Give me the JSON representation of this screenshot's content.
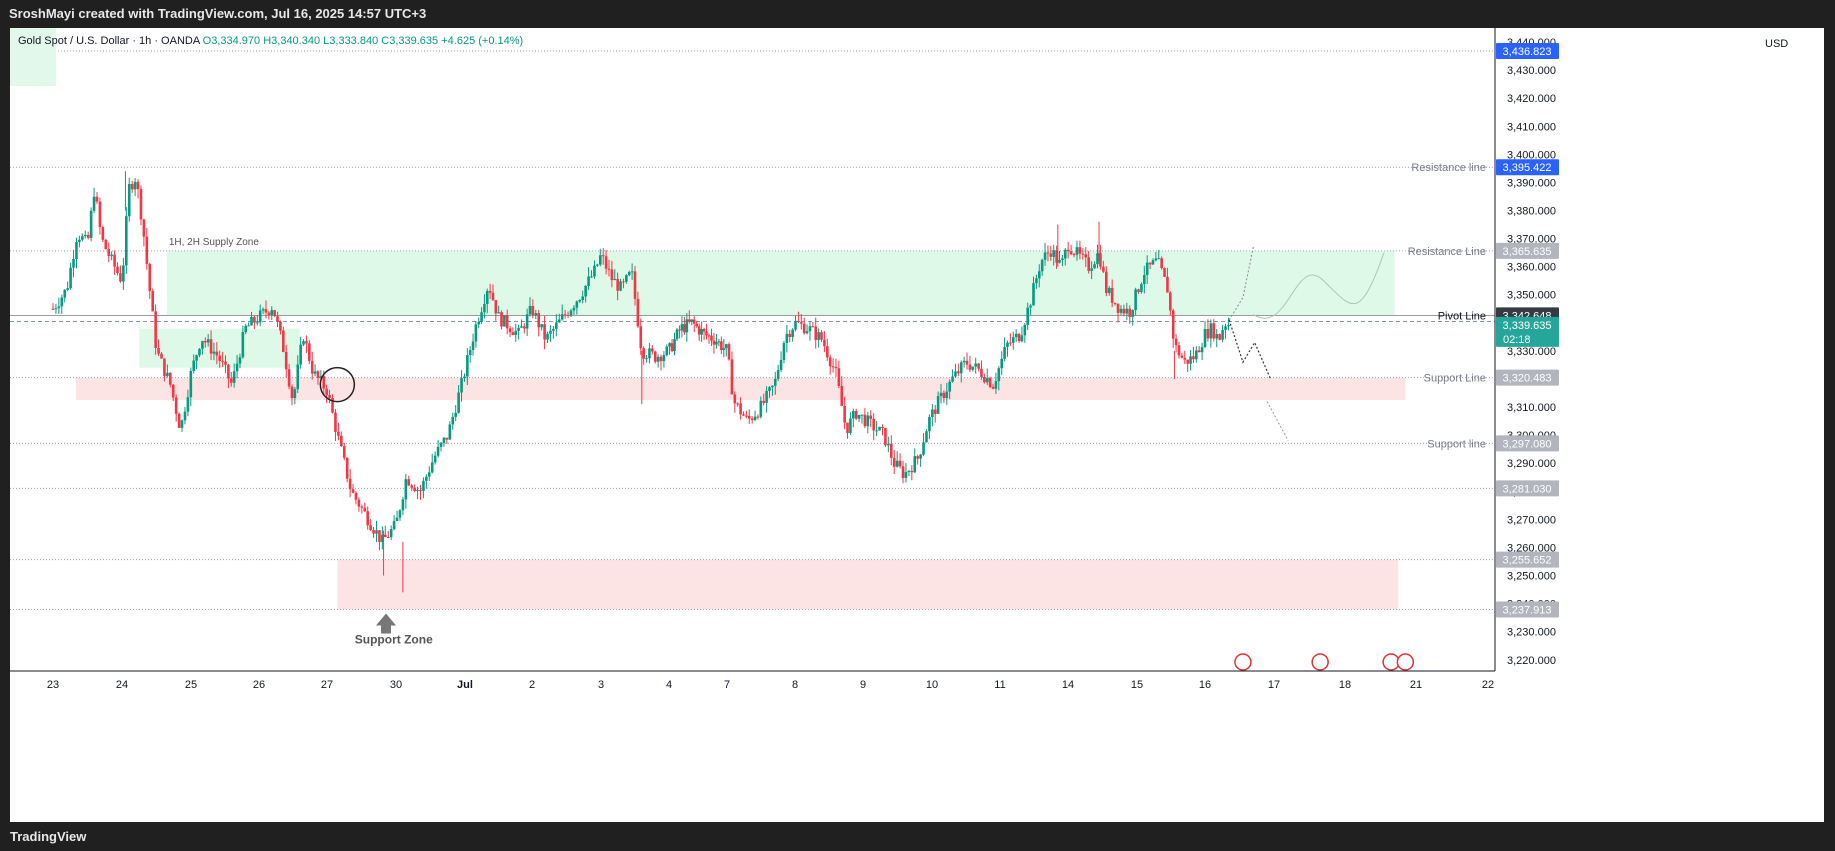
{
  "header": {
    "attribution": "SroshMayi created with TradingView.com, Jul 16, 2025 14:57 UTC+3"
  },
  "legend": {
    "symbol": "Gold Spot / U.S. Dollar · 1h · OANDA",
    "open": "O3,334.970",
    "high": "H3,340.340",
    "low": "L3,333.840",
    "close": "C3,339.635",
    "change": "+4.625 (+0.14%)"
  },
  "currency": "USD",
  "footer": {
    "brand": "TradingView"
  },
  "colors": {
    "up": "#089981",
    "down": "#f23645",
    "supply_zone": "#dff9e9",
    "support_zone": "#fde4e4",
    "blue_label": "#2962ff",
    "gray_label": "#b2b5be",
    "dark_label": "#363a45",
    "teal_label": "#26a69a"
  },
  "chart_data": {
    "type": "candlestick",
    "title": "Gold Spot / U.S. Dollar · 1h · OANDA",
    "ylim": [
      3216,
      3445
    ],
    "y_ticks": [
      3220,
      3230,
      3240,
      3250,
      3260,
      3270,
      3280,
      3290,
      3300,
      3310,
      3320,
      3330,
      3340,
      3350,
      3360,
      3370,
      3380,
      3390,
      3400,
      3410,
      3420,
      3430,
      3440
    ],
    "x_ticks": [
      {
        "label": "23",
        "i": 0
      },
      {
        "label": "24",
        "i": 1
      },
      {
        "label": "25",
        "i": 2
      },
      {
        "label": "26",
        "i": 3
      },
      {
        "label": "27",
        "i": 4
      },
      {
        "label": "30",
        "i": 5
      },
      {
        "label": "Jul",
        "i": 6
      },
      {
        "label": "2",
        "i": 7
      },
      {
        "label": "3",
        "i": 8
      },
      {
        "label": "4",
        "i": 9
      },
      {
        "label": "7",
        "i": 10
      },
      {
        "label": "8",
        "i": 11
      },
      {
        "label": "9",
        "i": 12
      },
      {
        "label": "10",
        "i": 13
      },
      {
        "label": "11",
        "i": 14
      },
      {
        "label": "14",
        "i": 15
      },
      {
        "label": "15",
        "i": 16
      },
      {
        "label": "16",
        "i": 17
      },
      {
        "label": "17",
        "i": 18
      },
      {
        "label": "18",
        "i": 19
      },
      {
        "label": "21",
        "i": 20
      },
      {
        "label": "22",
        "i": 21
      }
    ],
    "close_path": [
      [
        0,
        3345
      ],
      [
        0.2,
        3352
      ],
      [
        0.35,
        3372
      ],
      [
        0.5,
        3368
      ],
      [
        0.6,
        3388
      ],
      [
        0.7,
        3370
      ],
      [
        0.85,
        3362
      ],
      [
        1.0,
        3355
      ],
      [
        1.1,
        3388
      ],
      [
        1.2,
        3392
      ],
      [
        1.3,
        3375
      ],
      [
        1.4,
        3352
      ],
      [
        1.5,
        3330
      ],
      [
        1.7,
        3318
      ],
      [
        1.85,
        3302
      ],
      [
        2.0,
        3322
      ],
      [
        2.15,
        3335
      ],
      [
        2.4,
        3328
      ],
      [
        2.6,
        3318
      ],
      [
        2.8,
        3338
      ],
      [
        3.0,
        3342
      ],
      [
        3.2,
        3346
      ],
      [
        3.35,
        3332
      ],
      [
        3.5,
        3312
      ],
      [
        3.65,
        3336
      ],
      [
        3.8,
        3322
      ],
      [
        4.0,
        3316
      ],
      [
        4.15,
        3300
      ],
      [
        4.35,
        3280
      ],
      [
        4.55,
        3272
      ],
      [
        4.8,
        3262
      ],
      [
        5.0,
        3268
      ],
      [
        5.15,
        3285
      ],
      [
        5.35,
        3280
      ],
      [
        5.55,
        3292
      ],
      [
        5.75,
        3300
      ],
      [
        5.95,
        3318
      ],
      [
        6.15,
        3338
      ],
      [
        6.35,
        3354
      ],
      [
        6.5,
        3342
      ],
      [
        6.8,
        3336
      ],
      [
        7.0,
        3345
      ],
      [
        7.2,
        3334
      ],
      [
        7.45,
        3342
      ],
      [
        7.7,
        3350
      ],
      [
        7.9,
        3358
      ],
      [
        8.0,
        3364
      ],
      [
        8.15,
        3356
      ],
      [
        8.3,
        3352
      ],
      [
        8.45,
        3358
      ],
      [
        8.6,
        3330
      ],
      [
        8.8,
        3328
      ],
      [
        9.0,
        3330
      ],
      [
        9.2,
        3338
      ],
      [
        9.4,
        3340
      ],
      [
        9.6,
        3336
      ],
      [
        9.8,
        3334
      ],
      [
        10.0,
        3330
      ],
      [
        10.1,
        3312
      ],
      [
        10.3,
        3305
      ],
      [
        10.5,
        3310
      ],
      [
        10.7,
        3318
      ],
      [
        10.85,
        3335
      ],
      [
        11.0,
        3340
      ],
      [
        11.2,
        3338
      ],
      [
        11.4,
        3334
      ],
      [
        11.6,
        3322
      ],
      [
        11.75,
        3302
      ],
      [
        11.9,
        3308
      ],
      [
        12.1,
        3304
      ],
      [
        12.3,
        3300
      ],
      [
        12.45,
        3290
      ],
      [
        12.6,
        3286
      ],
      [
        12.8,
        3292
      ],
      [
        12.95,
        3305
      ],
      [
        13.1,
        3312
      ],
      [
        13.3,
        3320
      ],
      [
        13.5,
        3326
      ],
      [
        13.7,
        3323
      ],
      [
        13.9,
        3318
      ],
      [
        14.1,
        3332
      ],
      [
        14.3,
        3336
      ],
      [
        14.45,
        3348
      ],
      [
        14.6,
        3362
      ],
      [
        14.75,
        3366
      ],
      [
        14.9,
        3360
      ],
      [
        15.0,
        3368
      ],
      [
        15.15,
        3364
      ],
      [
        15.3,
        3360
      ],
      [
        15.45,
        3365
      ],
      [
        15.55,
        3352
      ],
      [
        15.75,
        3345
      ],
      [
        15.9,
        3344
      ],
      [
        16.1,
        3358
      ],
      [
        16.3,
        3362
      ],
      [
        16.45,
        3352
      ],
      [
        16.55,
        3332
      ],
      [
        16.7,
        3326
      ],
      [
        16.85,
        3328
      ],
      [
        17.0,
        3336
      ],
      [
        17.1,
        3338
      ],
      [
        17.2,
        3334
      ],
      [
        17.28,
        3340
      ],
      [
        17.35,
        3339.6
      ]
    ],
    "reference_lines": [
      {
        "label": "Resistance line",
        "value": "3,395.422",
        "price": 3395.422,
        "style": "blue"
      },
      {
        "label": "Resistance Line",
        "value": "3,365.635",
        "price": 3365.635,
        "style": "gray"
      },
      {
        "label": "Pivot Line",
        "value": "3,342.648",
        "price": 3342.648,
        "style": "dark"
      },
      {
        "label": "Support Line",
        "value": "3,320.483",
        "price": 3320.483,
        "style": "gray"
      },
      {
        "label": "Support line",
        "value": "3,297.080",
        "price": 3297.08,
        "style": "gray"
      },
      {
        "label": "",
        "value": "3,281.030",
        "price": 3281.03,
        "style": "gray"
      },
      {
        "label": "",
        "value": "3,255.652",
        "price": 3255.652,
        "style": "gray"
      },
      {
        "label": "",
        "value": "3,237.913",
        "price": 3237.913,
        "style": "gray"
      },
      {
        "label": "",
        "value": "3,436.823",
        "price": 3436.823,
        "style": "blue"
      }
    ],
    "current_price": {
      "value": "3,339.635",
      "countdown": "02:18",
      "price": 3339.635
    },
    "zones": [
      {
        "name": "1H, 2H Supply Zone",
        "from_i": 1.65,
        "to_i": 19.7,
        "lo": 3342.648,
        "hi": 3365.635,
        "kind": "supply"
      },
      {
        "name": "",
        "from_i": 1.25,
        "to_i": 3.6,
        "lo": 3324,
        "hi": 3338,
        "kind": "supply"
      },
      {
        "name": "",
        "from_i": 0.33,
        "to_i": 19.85,
        "lo": 3312.5,
        "hi": 3320.483,
        "kind": "support"
      },
      {
        "name": "Support Zone",
        "from_i": 4.15,
        "to_i": 19.75,
        "lo": 3237.913,
        "hi": 3255.652,
        "kind": "support"
      }
    ]
  }
}
